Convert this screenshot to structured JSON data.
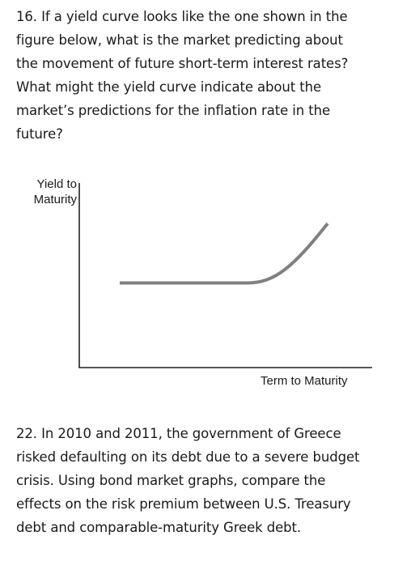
{
  "question_16": {
    "lines": [
      "16. If a yield curve looks like the one shown in the",
      "figure below, what is the market predicting about",
      "the movement of future short-term interest rates?",
      "What might the yield curve indicate about the",
      "market’s predictions for the inflation rate in the",
      "future?"
    ]
  },
  "figure": {
    "y_axis_label_line1": "Yield to",
    "y_axis_label_line2": "Maturity",
    "x_axis_label": "Term to Maturity",
    "axis_color": "#222222",
    "curve_color": "#808080",
    "curve_shape": "flat then rising steeply"
  },
  "question_22": {
    "lines": [
      "22. In 2010 and 2011, the government of Greece",
      "risked defaulting on its debt due to a severe budget",
      "crisis. Using bond market graphs, compare the",
      "effects on the risk premium between U.S. Treasury",
      "debt and comparable-maturity Greek debt."
    ]
  }
}
